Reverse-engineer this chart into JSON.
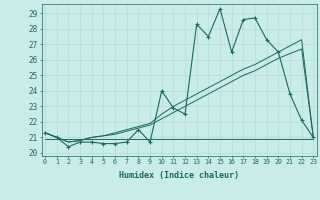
{
  "xlabel": "Humidex (Indice chaleur)",
  "bg_color": "#c8ece8",
  "line_color": "#1a6b5a",
  "grid_major_color": "#b8dbd6",
  "grid_minor_color": "#cce8e4",
  "x_data": [
    0,
    1,
    2,
    3,
    4,
    5,
    6,
    7,
    8,
    9,
    10,
    11,
    12,
    13,
    14,
    15,
    16,
    17,
    18,
    19,
    20,
    21,
    22,
    23
  ],
  "y_main": [
    21.3,
    21.0,
    20.4,
    20.7,
    20.7,
    20.6,
    20.6,
    20.7,
    21.5,
    20.7,
    24.0,
    22.9,
    22.5,
    28.3,
    27.5,
    29.3,
    26.5,
    28.6,
    28.7,
    27.3,
    26.5,
    23.8,
    22.1,
    21.0
  ],
  "y_trend1": [
    21.3,
    21.0,
    20.7,
    20.8,
    21.0,
    21.1,
    21.3,
    21.5,
    21.7,
    21.9,
    22.5,
    23.0,
    23.4,
    23.8,
    24.2,
    24.6,
    25.0,
    25.4,
    25.7,
    26.1,
    26.5,
    26.9,
    27.3,
    21.0
  ],
  "y_trend2": [
    21.3,
    21.0,
    20.7,
    20.8,
    21.0,
    21.1,
    21.2,
    21.4,
    21.6,
    21.8,
    22.2,
    22.6,
    23.0,
    23.4,
    23.8,
    24.2,
    24.6,
    25.0,
    25.3,
    25.7,
    26.1,
    26.4,
    26.7,
    21.0
  ],
  "y_flat_x": [
    0,
    1,
    2,
    3,
    4,
    5,
    6,
    7,
    8,
    9,
    10,
    11,
    12,
    13,
    14,
    15,
    16,
    17,
    18,
    19,
    20,
    23
  ],
  "y_flat_y": [
    20.9,
    20.9,
    20.9,
    20.9,
    20.9,
    20.9,
    20.9,
    20.9,
    20.9,
    20.9,
    20.9,
    20.9,
    20.9,
    20.9,
    20.9,
    20.9,
    20.9,
    20.9,
    20.9,
    20.9,
    20.9,
    20.9
  ],
  "ylim": [
    19.8,
    29.6
  ],
  "xlim": [
    -0.3,
    23.3
  ],
  "yticks": [
    20,
    21,
    22,
    23,
    24,
    25,
    26,
    27,
    28,
    29
  ],
  "xticks": [
    0,
    1,
    2,
    3,
    4,
    5,
    6,
    7,
    8,
    9,
    10,
    11,
    12,
    13,
    14,
    15,
    16,
    17,
    18,
    19,
    20,
    21,
    22,
    23
  ]
}
